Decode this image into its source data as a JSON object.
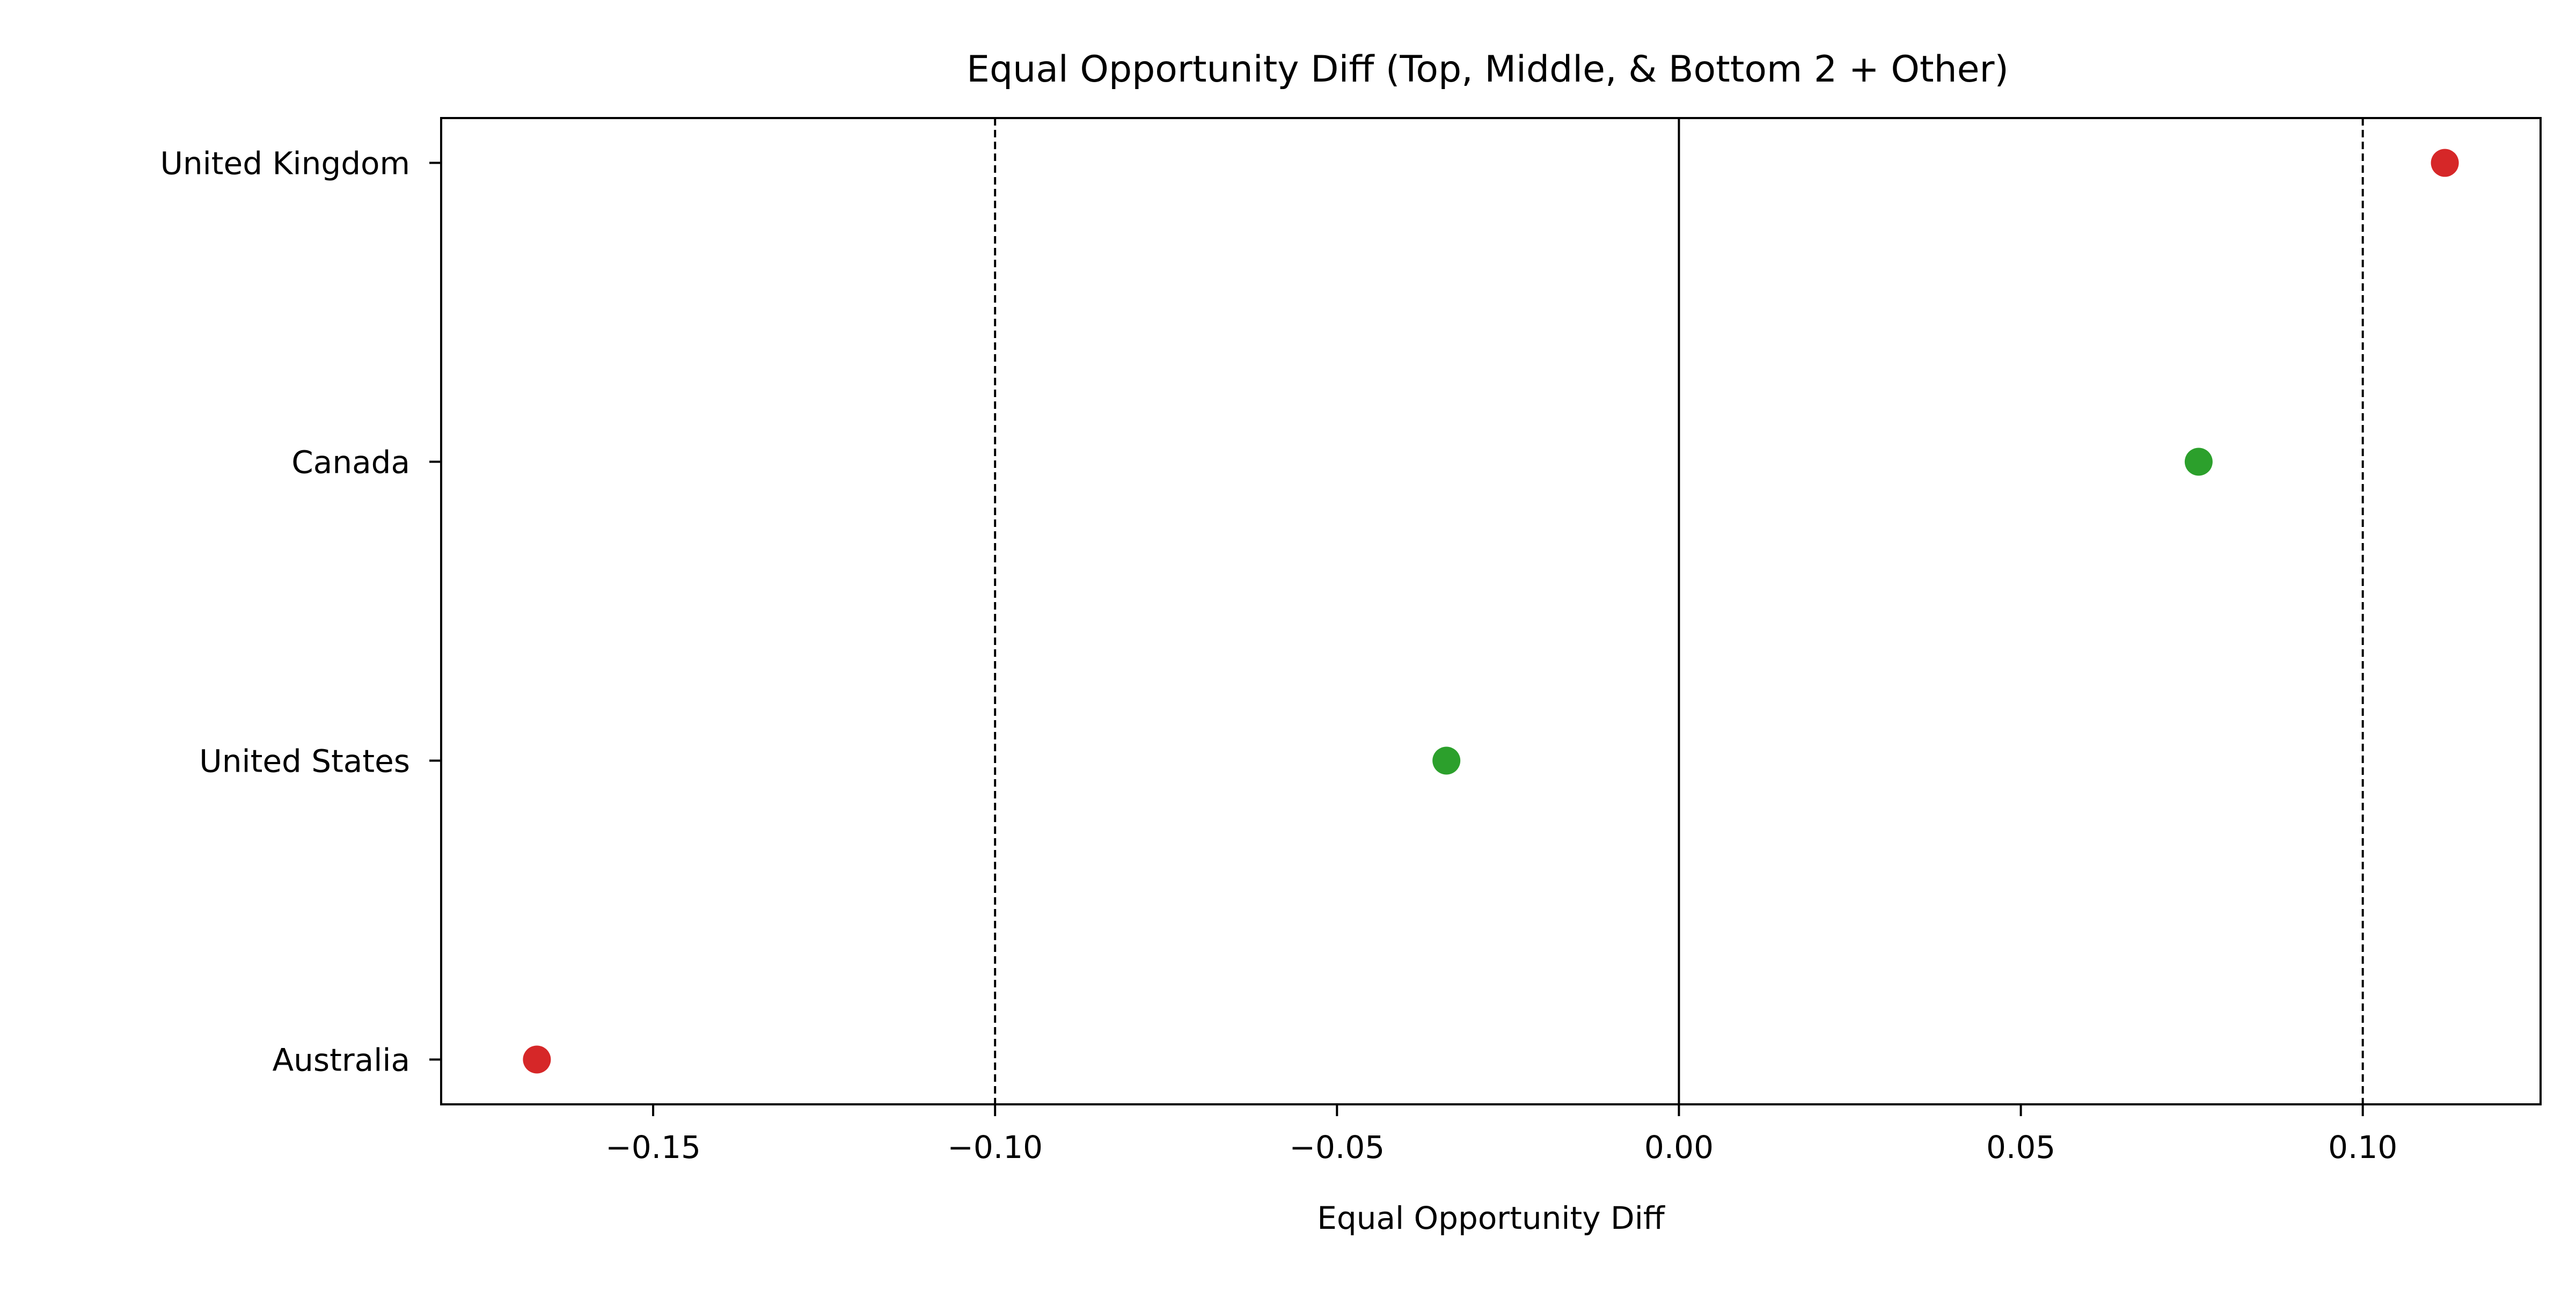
{
  "chart_data": {
    "type": "scatter",
    "title": "Equal Opportunity Diff (Top, Middle, & Bottom 2 + Other)",
    "xlabel": "Equal Opportunity Diff",
    "ylabel": "",
    "categories": [
      "United Kingdom",
      "Canada",
      "United States",
      "Australia"
    ],
    "points": [
      {
        "category": "United Kingdom",
        "value": 0.112,
        "color": "#d62728"
      },
      {
        "category": "Canada",
        "value": 0.076,
        "color": "#2ca02c"
      },
      {
        "category": "United States",
        "value": -0.034,
        "color": "#2ca02c"
      },
      {
        "category": "Australia",
        "value": -0.167,
        "color": "#d62728"
      }
    ],
    "xlim": [
      -0.181,
      0.126
    ],
    "xticks": [
      -0.15,
      -0.1,
      -0.05,
      0.0,
      0.05,
      0.1
    ],
    "xtick_labels": [
      "−0.15",
      "−0.10",
      "−0.05",
      "0.00",
      "0.05",
      "0.10"
    ],
    "reference_lines": [
      {
        "value": -0.1,
        "style": "dashed",
        "color": "#000000"
      },
      {
        "value": 0.0,
        "style": "solid",
        "color": "#000000"
      },
      {
        "value": 0.1,
        "style": "dashed",
        "color": "#000000"
      }
    ],
    "grid": false,
    "legend": "none"
  }
}
